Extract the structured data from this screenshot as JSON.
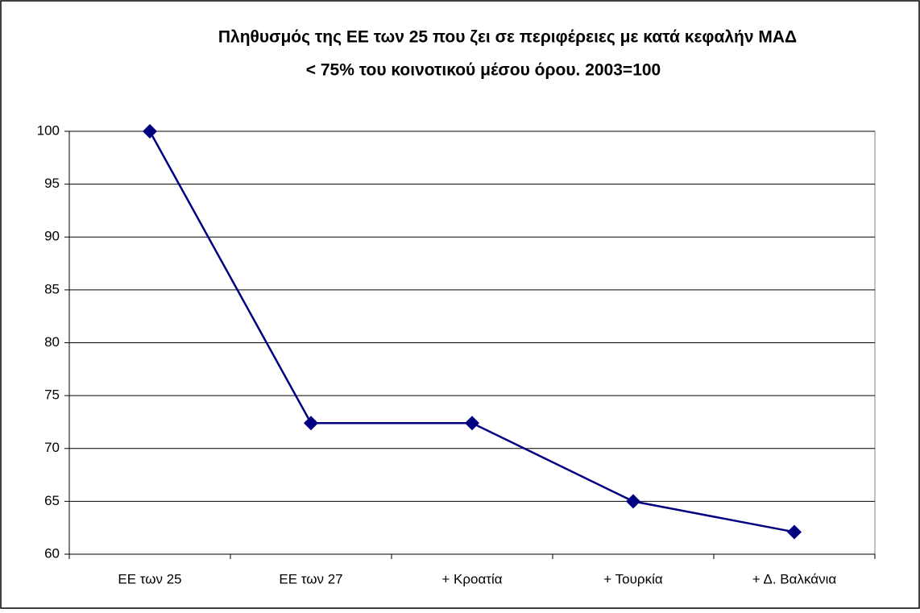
{
  "chart_data": {
    "type": "line",
    "title": [
      "Πληθυσμός της ΕΕ των 25 που ζει σε περιφέρειες με κατά κεφαλήν ΜΑΔ",
      "< 75% του κοινοτικού μέσου όρου. 2003=100"
    ],
    "categories": [
      "ΕΕ των 25",
      "ΕΕ των 27",
      "+ Κροατία",
      "+ Τουρκία",
      "+ Δ. Βαλκάνια"
    ],
    "values": [
      100,
      72.4,
      72.4,
      65,
      62.1
    ],
    "color": "#000080",
    "ylim": [
      60,
      100
    ],
    "yticks": [
      60,
      65,
      70,
      75,
      80,
      85,
      90,
      95,
      100
    ],
    "grid": true
  }
}
